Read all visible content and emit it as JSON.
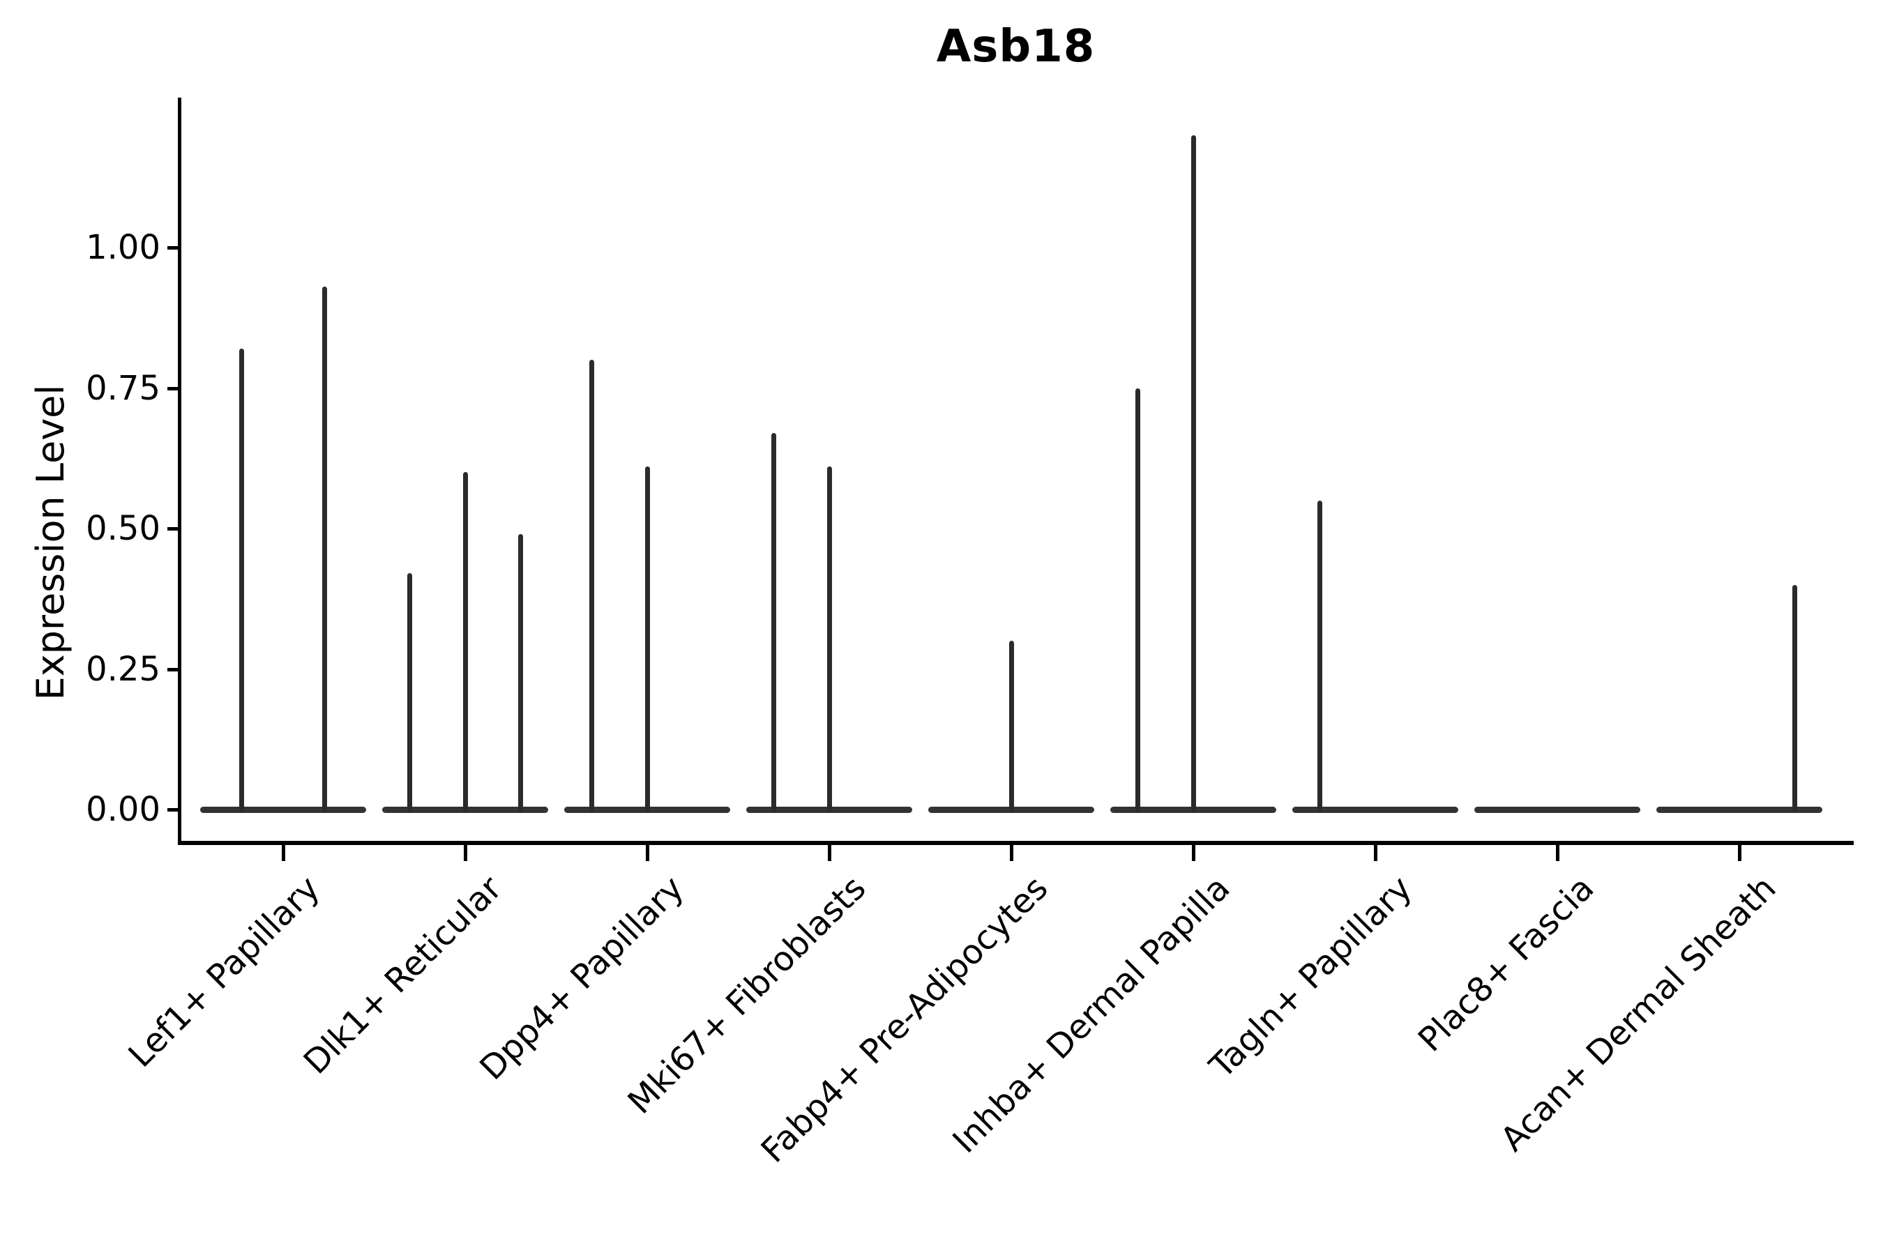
{
  "chart_data": {
    "type": "violin",
    "title": "Asb18",
    "ylabel": "Expression Level",
    "xlabel": "",
    "legend": "none",
    "grid": false,
    "ylim": [
      0,
      1.27
    ],
    "y_tick_values": [
      0,
      0.25,
      0.5,
      0.75,
      1.0
    ],
    "y_tick_labels": [
      "0.00",
      "0.25",
      "0.50",
      "0.75",
      "1.00"
    ],
    "categories": [
      {
        "label": "Lef1+ Papillary",
        "n_violins": 2,
        "spikes": [
          {
            "slot": 1,
            "peak": 0.82
          },
          {
            "slot": 2,
            "peak": 0.93
          }
        ]
      },
      {
        "label": "Dlk1+ Reticular",
        "n_violins": 3,
        "spikes": [
          {
            "slot": 1,
            "peak": 0.42
          },
          {
            "slot": 2,
            "peak": 0.6
          },
          {
            "slot": 3,
            "peak": 0.49
          }
        ]
      },
      {
        "label": "Dpp4+ Papillary",
        "n_violins": 3,
        "spikes": [
          {
            "slot": 1,
            "peak": 0.8
          },
          {
            "slot": 2,
            "peak": 0.61
          }
        ]
      },
      {
        "label": "Mki67+ Fibroblasts",
        "n_violins": 3,
        "spikes": [
          {
            "slot": 1,
            "peak": 0.67
          },
          {
            "slot": 2,
            "peak": 0.61
          }
        ]
      },
      {
        "label": "Fabp4+ Pre-Adipocytes",
        "n_violins": 3,
        "spikes": [
          {
            "slot": 2,
            "peak": 0.3
          }
        ]
      },
      {
        "label": "Inhba+ Dermal Papilla",
        "n_violins": 3,
        "spikes": [
          {
            "slot": 1,
            "peak": 0.75
          },
          {
            "slot": 2,
            "peak": 1.2
          }
        ]
      },
      {
        "label": "Tagln+ Papillary",
        "n_violins": 3,
        "spikes": [
          {
            "slot": 1,
            "peak": 0.55
          }
        ]
      },
      {
        "label": "Plac8+ Fascia",
        "n_violins": 3,
        "spikes": []
      },
      {
        "label": "Acan+ Dermal Sheath",
        "n_violins": 3,
        "spikes": [
          {
            "slot": 3,
            "peak": 0.4
          }
        ]
      }
    ],
    "colors": {
      "violin": "#2b2b2b",
      "baseline": "#333333",
      "axis": "#000000",
      "text": "#000000",
      "background": "#ffffff"
    }
  }
}
